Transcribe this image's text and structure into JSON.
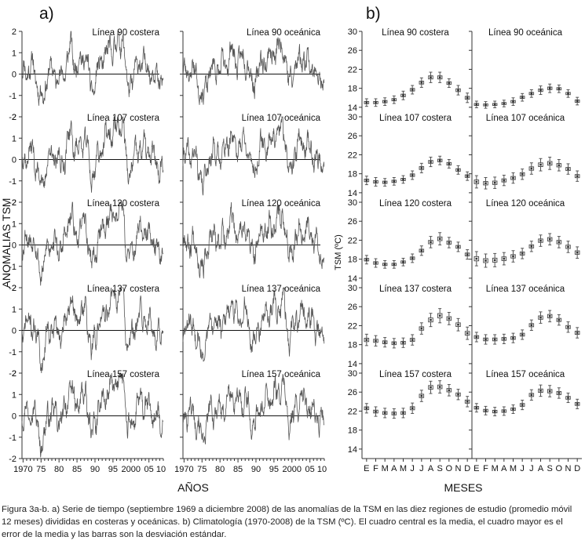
{
  "panel_a_label": "a)",
  "panel_b_label": "b)",
  "caption": "Figura 3a-b. a) Serie de tiempo (septiembre 1969 a diciembre 2008) de las anomalías de la TSM en las diez regiones de estudio (promedio móvil 12 meses) divididas en costeras y oceánicas. b) Climatología (1970-2008) de la TSM (ºC). El cuadro central es la media, el cuadro mayor es el error de la media y las barras son la desviación estándar.",
  "chart_data": [
    {
      "type": "line",
      "panel": "a",
      "ylabel": "ANOMALIAS TSM",
      "xlabel": "AÑOS",
      "xlim": [
        1969.7,
        2009
      ],
      "ylim": [
        -2,
        2
      ],
      "yticks": [
        -2,
        -1,
        0,
        1,
        2
      ],
      "xtick_values": [
        1970,
        1975,
        1980,
        1985,
        1990,
        1995,
        2000,
        2005,
        2010
      ],
      "xtick_labels": [
        "1970",
        "75",
        "80",
        "85",
        "90",
        "95",
        "2000",
        "05",
        "10"
      ],
      "zero_line": true,
      "peak_anchors": {
        "x": [
          1969.7,
          1972.5,
          1975.5,
          1977,
          1981,
          1983.2,
          1984.5,
          1987.5,
          1989,
          1991.5,
          1993,
          1997.9,
          1999,
          2002.5,
          2005,
          2008
        ],
        "coastal_base": [
          0.0,
          0.4,
          -1.3,
          0.2,
          -0.2,
          1.3,
          0.4,
          0.9,
          -0.9,
          0.5,
          0.9,
          1.7,
          -0.8,
          0.6,
          0.3,
          -0.3
        ],
        "oceanic_base": [
          0.0,
          0.3,
          -1.2,
          0.2,
          0.3,
          1.1,
          0.6,
          0.8,
          -0.6,
          0.5,
          0.7,
          1.4,
          -0.5,
          0.9,
          0.5,
          -0.3
        ]
      },
      "series": [
        {
          "name": "Línea 90 costera",
          "row": 0,
          "col": 0,
          "scale": 1.0,
          "seed": 11
        },
        {
          "name": "Línea 90 oceánica",
          "row": 0,
          "col": 1,
          "scale": 1.0,
          "seed": 23
        },
        {
          "name": "Línea 107 costera",
          "row": 1,
          "col": 0,
          "scale": 1.05,
          "seed": 37
        },
        {
          "name": "Línea 107 oceánica",
          "row": 1,
          "col": 1,
          "scale": 1.05,
          "seed": 41
        },
        {
          "name": "Línea 120 costera",
          "row": 2,
          "col": 0,
          "scale": 1.15,
          "seed": 53
        },
        {
          "name": "Línea 120 oceánica",
          "row": 2,
          "col": 1,
          "scale": 1.0,
          "seed": 67
        },
        {
          "name": "Línea 137 costera",
          "row": 3,
          "col": 0,
          "scale": 1.15,
          "seed": 71
        },
        {
          "name": "Línea 137 oceánica",
          "row": 3,
          "col": 1,
          "scale": 1.1,
          "seed": 83
        },
        {
          "name": "Línea 157 costera",
          "row": 4,
          "col": 0,
          "scale": 1.1,
          "seed": 97
        },
        {
          "name": "Línea 157 oceánica",
          "row": 4,
          "col": 1,
          "scale": 1.0,
          "seed": 101
        }
      ]
    },
    {
      "type": "scatter",
      "panel": "b",
      "style": "box and whisker (mean, error of the mean, standard deviation)",
      "ylabel": "TSM (ºC)",
      "xlabel": "MESES",
      "categories": [
        "E",
        "F",
        "M",
        "A",
        "M",
        "J",
        "J",
        "A",
        "S",
        "O",
        "N",
        "D"
      ],
      "series": [
        {
          "name": "Línea 90 costera",
          "row": 0,
          "col": 0,
          "ylim": [
            12,
            30
          ],
          "yticks": [
            14,
            18,
            22,
            26,
            30
          ],
          "values": [
            15.0,
            15.0,
            15.2,
            15.6,
            16.5,
            17.7,
            19.2,
            20.3,
            20.3,
            19.1,
            17.6,
            16.0
          ],
          "sd": [
            0.8,
            0.8,
            0.8,
            0.8,
            0.9,
            0.9,
            1.0,
            1.1,
            1.1,
            0.9,
            1.0,
            1.0
          ]
        },
        {
          "name": "Línea 90 oceánica",
          "row": 0,
          "col": 1,
          "ylim": [
            12,
            30
          ],
          "yticks": [
            14,
            18,
            22,
            26,
            30
          ],
          "values": [
            14.6,
            14.5,
            14.6,
            14.8,
            15.2,
            16.1,
            16.9,
            17.6,
            18.0,
            17.9,
            16.9,
            15.3
          ],
          "sd": [
            0.7,
            0.7,
            0.7,
            0.7,
            0.8,
            0.8,
            0.8,
            0.9,
            0.9,
            0.8,
            0.8,
            0.8
          ]
        },
        {
          "name": "Línea 107 costera",
          "row": 1,
          "col": 0,
          "ylim": [
            12,
            30
          ],
          "yticks": [
            14,
            18,
            22,
            26,
            30
          ],
          "values": [
            16.6,
            16.3,
            16.2,
            16.4,
            16.8,
            17.7,
            19.2,
            20.5,
            20.8,
            20.1,
            18.8,
            17.5
          ],
          "sd": [
            0.9,
            0.9,
            0.8,
            0.8,
            0.8,
            0.9,
            1.0,
            1.0,
            0.9,
            0.9,
            0.9,
            0.9
          ]
        },
        {
          "name": "Línea 107 oceánica",
          "row": 1,
          "col": 1,
          "ylim": [
            12,
            30
          ],
          "yticks": [
            14,
            18,
            22,
            26,
            30
          ],
          "values": [
            16.3,
            16.0,
            16.1,
            16.6,
            17.1,
            17.9,
            19.1,
            19.9,
            20.2,
            19.8,
            19.0,
            17.5
          ],
          "sd": [
            1.3,
            1.2,
            1.2,
            1.1,
            1.1,
            1.1,
            1.2,
            1.3,
            1.3,
            1.2,
            1.1,
            1.1
          ]
        },
        {
          "name": "Línea 120 costera",
          "row": 2,
          "col": 0,
          "ylim": [
            12,
            30
          ],
          "yticks": [
            14,
            18,
            22,
            26,
            30
          ],
          "values": [
            17.9,
            17.2,
            16.9,
            16.9,
            17.4,
            18.2,
            19.8,
            21.6,
            22.3,
            21.5,
            20.6,
            19.0
          ],
          "sd": [
            0.9,
            0.9,
            0.8,
            0.8,
            0.8,
            0.9,
            1.0,
            1.2,
            1.3,
            1.1,
            1.0,
            1.0
          ]
        },
        {
          "name": "Línea 120 oceánica",
          "row": 2,
          "col": 1,
          "ylim": [
            12,
            30
          ],
          "yticks": [
            14,
            18,
            22,
            26,
            30
          ],
          "values": [
            18.1,
            17.7,
            17.8,
            18.1,
            18.6,
            19.2,
            20.7,
            21.9,
            22.2,
            21.6,
            20.6,
            19.4
          ],
          "sd": [
            1.5,
            1.4,
            1.4,
            1.3,
            1.2,
            1.1,
            1.1,
            1.2,
            1.2,
            1.2,
            1.2,
            1.2
          ]
        },
        {
          "name": "Línea 137 costera",
          "row": 3,
          "col": 0,
          "ylim": [
            12,
            30
          ],
          "yticks": [
            14,
            18,
            22,
            26,
            30
          ],
          "values": [
            19.0,
            18.8,
            18.5,
            18.3,
            18.4,
            19.0,
            21.4,
            23.2,
            24.1,
            23.5,
            22.2,
            20.4
          ],
          "sd": [
            1.2,
            1.1,
            1.0,
            1.0,
            1.0,
            1.1,
            1.2,
            1.4,
            1.5,
            1.3,
            1.3,
            1.3
          ]
        },
        {
          "name": "Línea 137 oceánica",
          "row": 3,
          "col": 1,
          "ylim": [
            12,
            30
          ],
          "yticks": [
            14,
            18,
            22,
            26,
            30
          ],
          "values": [
            19.6,
            19.1,
            19.1,
            19.2,
            19.4,
            20.1,
            22.1,
            23.7,
            24.0,
            23.2,
            21.7,
            20.5
          ],
          "sd": [
            1.0,
            1.0,
            1.0,
            1.0,
            1.0,
            1.0,
            1.1,
            1.2,
            1.2,
            1.1,
            1.1,
            1.1
          ]
        },
        {
          "name": "Línea 157 costera",
          "row": 4,
          "col": 0,
          "ylim": [
            12,
            30
          ],
          "yticks": [
            14,
            18,
            22,
            26,
            30
          ],
          "values": [
            22.6,
            21.9,
            21.6,
            21.5,
            21.6,
            22.6,
            25.2,
            27.0,
            27.1,
            26.4,
            25.5,
            24.0
          ],
          "sd": [
            1.0,
            1.0,
            1.0,
            1.0,
            1.0,
            1.1,
            1.2,
            1.3,
            1.3,
            1.2,
            1.1,
            1.1
          ]
        },
        {
          "name": "Línea 157 oceánica",
          "row": 4,
          "col": 1,
          "ylim": [
            12,
            30
          ],
          "yticks": [
            14,
            18,
            22,
            26,
            30
          ],
          "values": [
            22.7,
            22.1,
            21.9,
            22.0,
            22.4,
            23.3,
            25.4,
            26.3,
            26.2,
            25.8,
            24.8,
            23.5
          ],
          "sd": [
            0.9,
            0.9,
            0.9,
            0.9,
            0.9,
            1.0,
            1.1,
            1.2,
            1.2,
            1.1,
            1.0,
            1.0
          ]
        }
      ]
    }
  ]
}
